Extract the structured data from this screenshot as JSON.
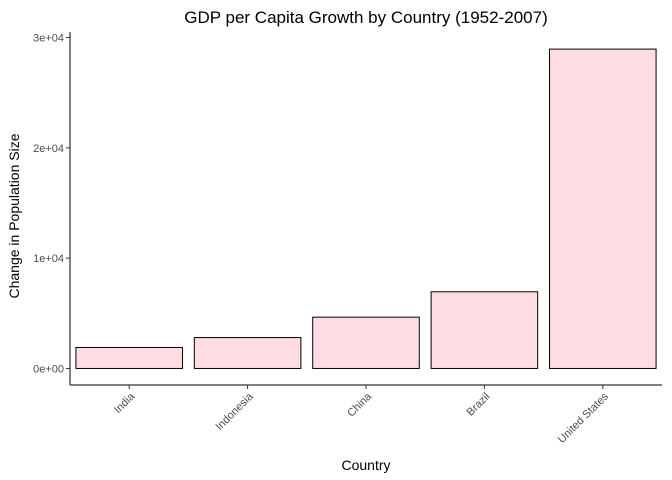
{
  "chart_data": {
    "type": "bar",
    "title": "GDP per Capita Growth by Country (1952-2007)",
    "xlabel": "Country",
    "ylabel": "Change in Population Size",
    "categories": [
      "India",
      "Indonesia",
      "China",
      "Brazil",
      "United States"
    ],
    "values": [
      1900,
      2800,
      4650,
      6950,
      28950
    ],
    "ylim": [
      -1500,
      30500
    ],
    "yticks": [
      0,
      10000,
      20000,
      30000
    ],
    "ytick_labels": [
      "0e+00",
      "1e+04",
      "2e+04",
      "3e+04"
    ],
    "grid": false,
    "legend": "none",
    "bar_fill": "#ffdde3",
    "bar_stroke": "#000000"
  }
}
